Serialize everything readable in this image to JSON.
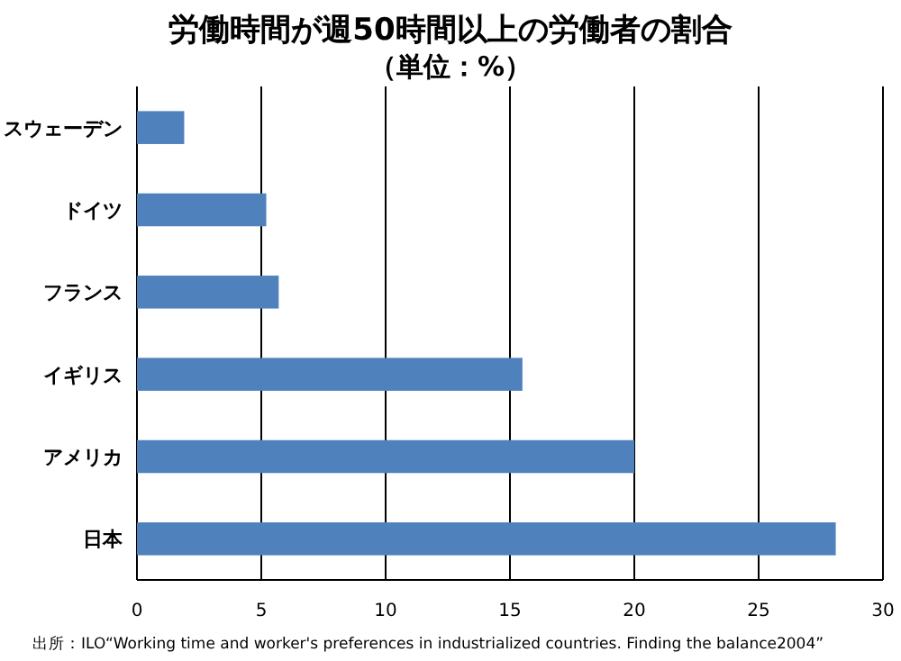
{
  "chart_data": {
    "type": "bar",
    "orientation": "horizontal",
    "title": "労働時間が週50時間以上の労働者の割合",
    "subtitle": "（単位：%）",
    "categories": [
      "スウェーデン",
      "ドイツ",
      "フランス",
      "イギリス",
      "アメリカ",
      "日本"
    ],
    "values": [
      1.9,
      5.2,
      5.7,
      15.5,
      20.0,
      28.1
    ],
    "color": "#4f81bd",
    "xlim": [
      0,
      30
    ],
    "xticks": [
      0,
      5,
      10,
      15,
      20,
      25,
      30
    ],
    "grid": "x",
    "annotations": [
      "出所：ILO“Working time and worker's preferences in industrialized countries.   Finding the balance2004”"
    ]
  }
}
